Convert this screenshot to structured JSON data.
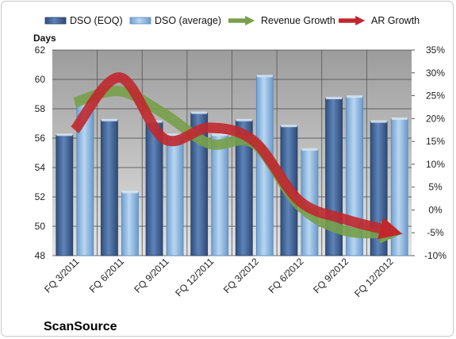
{
  "chart_data": {
    "type": "bar",
    "categories": [
      "FQ 3/2011",
      "FQ 6/2011",
      "FQ 9/2011",
      "FQ 12/2011",
      "FQ 3/2012",
      "FQ 6/2012",
      "FQ 9/2012",
      "FQ 12/2012"
    ],
    "y_left": {
      "title": "Days",
      "lim": [
        48,
        62
      ],
      "ticks": [
        48,
        50,
        52,
        54,
        56,
        58,
        60,
        62
      ]
    },
    "y_right": {
      "lim": [
        -10,
        35
      ],
      "ticks": [
        "-10%",
        "-5%",
        "0%",
        "5%",
        "10%",
        "15%",
        "20%",
        "25%",
        "30%",
        "35%"
      ],
      "tick_values": [
        -10,
        -5,
        0,
        5,
        10,
        15,
        20,
        25,
        30,
        35
      ]
    },
    "series": [
      {
        "name": "DSO (EOQ)",
        "type": "bar",
        "axis": "left",
        "color": "#4a6fa5",
        "values": [
          56.2,
          57.2,
          57.1,
          57.7,
          57.2,
          56.8,
          58.7,
          57.1
        ]
      },
      {
        "name": "DSO (average)",
        "type": "bar",
        "axis": "left",
        "color": "#8ab4e0",
        "values": [
          58.3,
          52.3,
          56.2,
          56.2,
          60.2,
          55.2,
          58.8,
          57.3
        ]
      },
      {
        "name": "Revenue Growth",
        "type": "line",
        "axis": "right",
        "color": "#77a04a",
        "unit": "%",
        "values": [
          23.5,
          26.0,
          21.0,
          14.5,
          14.5,
          1.0,
          -4.5,
          -5.0
        ]
      },
      {
        "name": "AR Growth",
        "type": "line",
        "axis": "right",
        "color": "#c0282e",
        "unit": "%",
        "values": [
          17.5,
          29.0,
          15.5,
          18.0,
          15.0,
          2.0,
          -2.0,
          -4.5
        ]
      }
    ],
    "grid": true,
    "legend": "top"
  },
  "brand": "ScanSource"
}
